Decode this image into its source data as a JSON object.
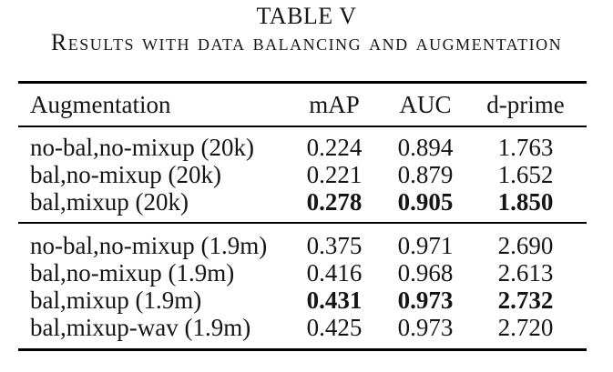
{
  "caption": {
    "number": "TABLE V",
    "title": "Results with data balancing and augmentation"
  },
  "table": {
    "columns": [
      "Augmentation",
      "mAP",
      "AUC",
      "d-prime"
    ],
    "groups": [
      {
        "rows": [
          {
            "label": "no-bal,no-mixup (20k)",
            "map": "0.224",
            "auc": "0.894",
            "dprime": "1.763",
            "bold": false
          },
          {
            "label": "bal,no-mixup (20k)",
            "map": "0.221",
            "auc": "0.879",
            "dprime": "1.652",
            "bold": false
          },
          {
            "label": "bal,mixup (20k)",
            "map": "0.278",
            "auc": "0.905",
            "dprime": "1.850",
            "bold": true
          }
        ]
      },
      {
        "rows": [
          {
            "label": "no-bal,no-mixup (1.9m)",
            "map": "0.375",
            "auc": "0.971",
            "dprime": "2.690",
            "bold": false
          },
          {
            "label": "bal,no-mixup (1.9m)",
            "map": "0.416",
            "auc": "0.968",
            "dprime": "2.613",
            "bold": false
          },
          {
            "label": "bal,mixup (1.9m)",
            "map": "0.431",
            "auc": "0.973",
            "dprime": "2.732",
            "bold": true
          },
          {
            "label": "bal,mixup-wav (1.9m)",
            "map": "0.425",
            "auc": "0.973",
            "dprime": "2.720",
            "bold": false
          }
        ]
      }
    ]
  },
  "colors": {
    "background": "#ffffff",
    "text": "#151515",
    "rule": "#000000"
  }
}
